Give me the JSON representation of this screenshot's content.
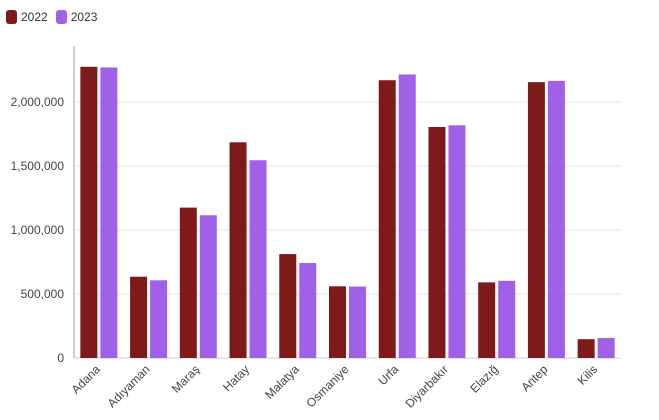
{
  "chart_data": {
    "type": "bar",
    "categories": [
      "Adana",
      "Adıyaman",
      "Maraş",
      "Hatay",
      "Malatya",
      "Osmaniye",
      "Urfa",
      "Diyarbakır",
      "Elazığ",
      "Antep",
      "Kilis"
    ],
    "series": [
      {
        "name": "2022",
        "color": "#7f1a1a",
        "values": [
          2275000,
          635000,
          1175000,
          1685000,
          812000,
          560000,
          2170000,
          1805000,
          591000,
          2155000,
          147000
        ]
      },
      {
        "name": "2023",
        "color": "#a160e8",
        "values": [
          2270000,
          607000,
          1115000,
          1545000,
          742000,
          558000,
          2215000,
          1818000,
          603000,
          2165000,
          156000
        ]
      }
    ],
    "title": "",
    "xlabel": "",
    "ylabel": "",
    "ylim": [
      0,
      2500000
    ],
    "yticks": [
      0,
      500000,
      1000000,
      1500000,
      2000000
    ],
    "ytick_labels": [
      "0",
      "500,000",
      "1,000,000",
      "1,500,000",
      "2,000,000"
    ],
    "grid": true,
    "legend": "top-left"
  }
}
